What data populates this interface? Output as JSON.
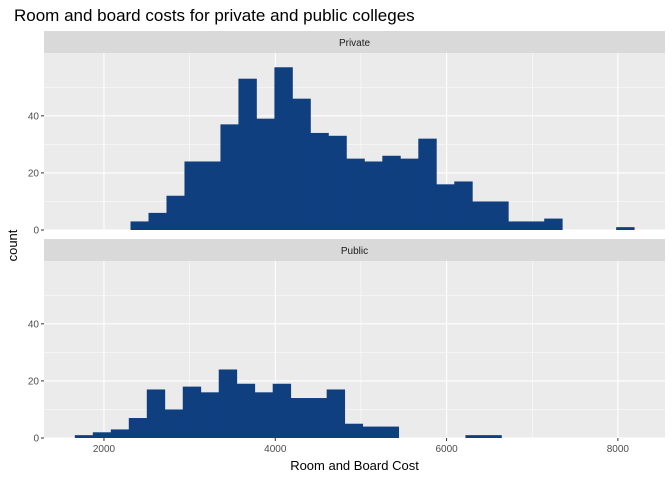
{
  "chart_data": {
    "type": "bar",
    "title": "Room and board costs for private and public colleges",
    "xlabel": "Room and Board Cost",
    "ylabel": "count",
    "xlim": [
      1300,
      8550
    ],
    "ylim": [
      0,
      62
    ],
    "x_ticks": [
      2000,
      4000,
      6000,
      8000
    ],
    "y_ticks": [
      0,
      20,
      40
    ],
    "x_tick_labels": [
      "2000",
      "4000",
      "6000",
      "8000"
    ],
    "y_tick_labels": [
      "0",
      "20",
      "40"
    ],
    "bin_width": 210,
    "colors": {
      "bar": "#0f3f7f",
      "panel_background": "#ebebeb",
      "strip_background": "#d9d9d9",
      "grid_major": "#ffffff"
    },
    "grid": true,
    "facets": [
      {
        "label": "Private",
        "bins": [
          {
            "x0": 2310,
            "x1": 2520,
            "count": 3
          },
          {
            "x0": 2520,
            "x1": 2730,
            "count": 6
          },
          {
            "x0": 2730,
            "x1": 2940,
            "count": 12
          },
          {
            "x0": 2940,
            "x1": 3150,
            "count": 24
          },
          {
            "x0": 3150,
            "x1": 3360,
            "count": 24
          },
          {
            "x0": 3360,
            "x1": 3570,
            "count": 37
          },
          {
            "x0": 3570,
            "x1": 3780,
            "count": 53
          },
          {
            "x0": 3780,
            "x1": 3990,
            "count": 39
          },
          {
            "x0": 3990,
            "x1": 4200,
            "count": 57
          },
          {
            "x0": 4200,
            "x1": 4410,
            "count": 46
          },
          {
            "x0": 4410,
            "x1": 4620,
            "count": 34
          },
          {
            "x0": 4620,
            "x1": 4830,
            "count": 33
          },
          {
            "x0": 4830,
            "x1": 5040,
            "count": 25
          },
          {
            "x0": 5040,
            "x1": 5250,
            "count": 24
          },
          {
            "x0": 5250,
            "x1": 5460,
            "count": 26
          },
          {
            "x0": 5460,
            "x1": 5670,
            "count": 25
          },
          {
            "x0": 5670,
            "x1": 5880,
            "count": 32
          },
          {
            "x0": 5880,
            "x1": 6090,
            "count": 16
          },
          {
            "x0": 6090,
            "x1": 6300,
            "count": 17
          },
          {
            "x0": 6300,
            "x1": 6510,
            "count": 10
          },
          {
            "x0": 6510,
            "x1": 6720,
            "count": 10
          },
          {
            "x0": 6720,
            "x1": 6930,
            "count": 3
          },
          {
            "x0": 6930,
            "x1": 7140,
            "count": 3
          },
          {
            "x0": 7140,
            "x1": 7350,
            "count": 4
          },
          {
            "x0": 7980,
            "x1": 8190,
            "count": 1
          }
        ]
      },
      {
        "label": "Public",
        "bins": [
          {
            "x0": 1660,
            "x1": 1870,
            "count": 1
          },
          {
            "x0": 1870,
            "x1": 2080,
            "count": 2
          },
          {
            "x0": 2080,
            "x1": 2290,
            "count": 3
          },
          {
            "x0": 2290,
            "x1": 2500,
            "count": 7
          },
          {
            "x0": 2500,
            "x1": 2710,
            "count": 17
          },
          {
            "x0": 2710,
            "x1": 2920,
            "count": 10
          },
          {
            "x0": 2920,
            "x1": 3130,
            "count": 18
          },
          {
            "x0": 3130,
            "x1": 3340,
            "count": 16
          },
          {
            "x0": 3340,
            "x1": 3550,
            "count": 24
          },
          {
            "x0": 3550,
            "x1": 3760,
            "count": 19
          },
          {
            "x0": 3760,
            "x1": 3970,
            "count": 16
          },
          {
            "x0": 3970,
            "x1": 4180,
            "count": 19
          },
          {
            "x0": 4180,
            "x1": 4390,
            "count": 14
          },
          {
            "x0": 4390,
            "x1": 4600,
            "count": 14
          },
          {
            "x0": 4600,
            "x1": 4810,
            "count": 17
          },
          {
            "x0": 4810,
            "x1": 5020,
            "count": 5
          },
          {
            "x0": 5020,
            "x1": 5230,
            "count": 4
          },
          {
            "x0": 5230,
            "x1": 5440,
            "count": 4
          },
          {
            "x0": 6220,
            "x1": 6430,
            "count": 1
          },
          {
            "x0": 6430,
            "x1": 6640,
            "count": 1
          }
        ]
      }
    ]
  }
}
